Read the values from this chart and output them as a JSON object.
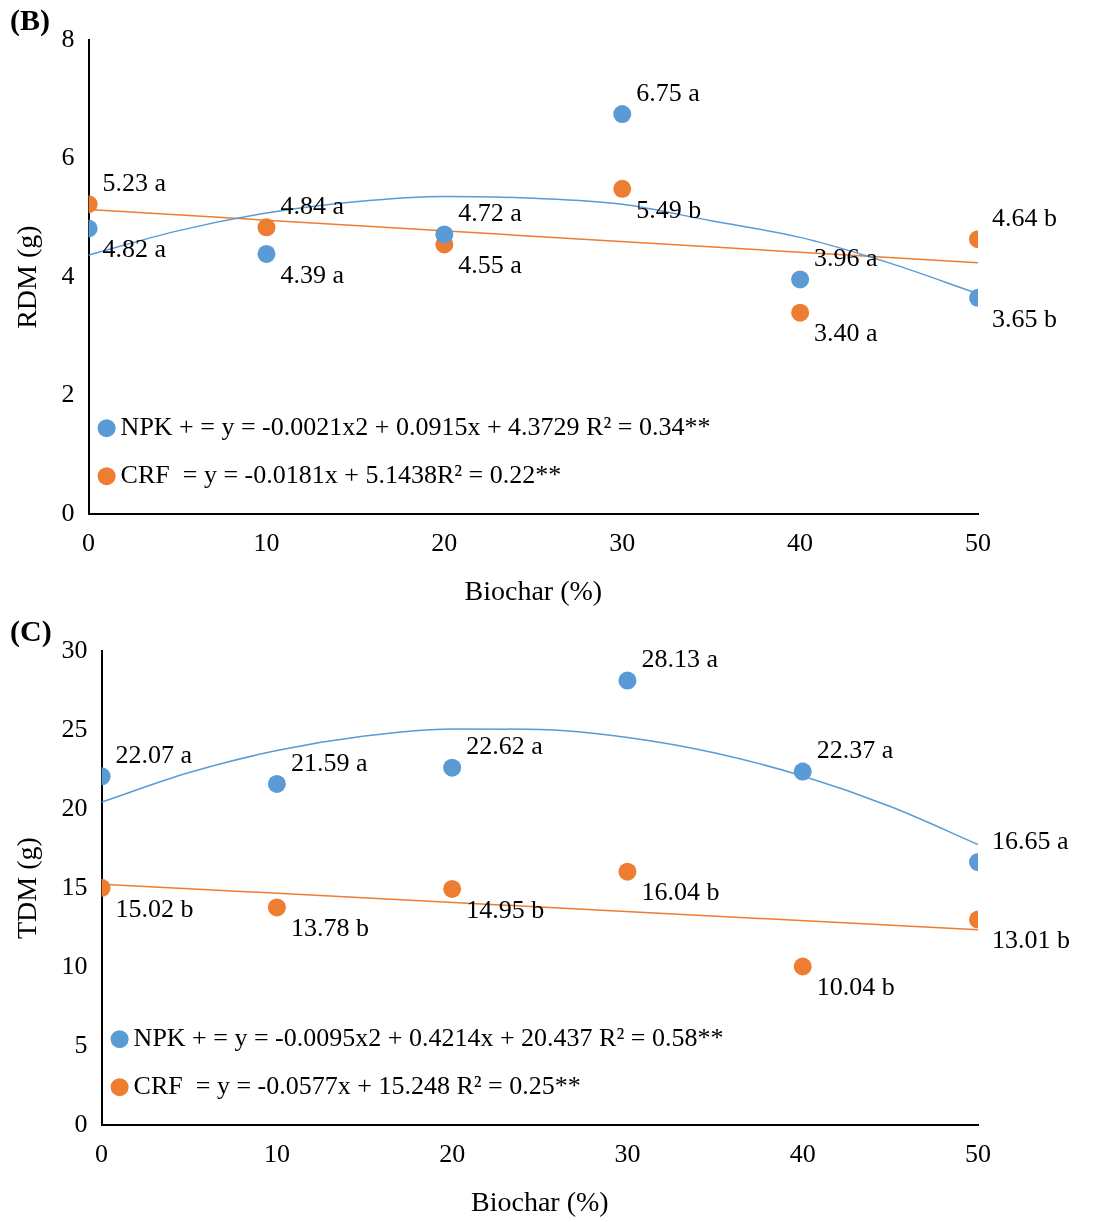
{
  "chart_data": [
    {
      "type": "scatter",
      "title": "(B)",
      "xlabel": "Biochar (%)",
      "ylabel": "RDM (g)",
      "x": [
        0,
        10,
        20,
        30,
        40,
        50
      ],
      "xlim": [
        0,
        50
      ],
      "xticks": [
        0,
        10,
        20,
        30,
        40,
        50
      ],
      "ylim": [
        0,
        8
      ],
      "yticks": [
        0,
        2,
        4,
        6,
        8
      ],
      "grid": false,
      "legend": "bottom left",
      "marker": "circle",
      "series": [
        {
          "name": "NPK + = y = -0.0021x2 + 0.0915x + 4.3729 R² = 0.34**",
          "color": "#5b9bd5",
          "values": [
            4.82,
            4.39,
            4.72,
            6.75,
            3.96,
            3.65
          ],
          "value_labels": [
            "4.82 a",
            "4.39 a",
            "4.72 a",
            "6.75 a",
            "3.96 a",
            "3.65 b"
          ]
        },
        {
          "name": "CRF  = y = -0.0181x + 5.1438R² = 0.22**",
          "color": "#ed7d31",
          "values": [
            5.23,
            4.84,
            4.55,
            5.49,
            3.4,
            4.64
          ],
          "value_labels": [
            "5.23 a",
            "4.84 a",
            "4.55 a",
            "5.49 b",
            "3.40 a",
            "4.64 b"
          ]
        },
        {
          "type": "line",
          "marker": "none",
          "color": "#5b9bd5",
          "x": [
            0,
            5,
            10,
            15,
            20,
            25,
            30,
            35,
            40,
            45,
            50
          ],
          "values": [
            4.37,
            4.78,
            5.08,
            5.27,
            5.36,
            5.33,
            5.23,
            4.95,
            4.67,
            4.24,
            3.72
          ]
        },
        {
          "type": "line",
          "marker": "none",
          "color": "#ed7d31",
          "x": [
            0,
            50
          ],
          "values": [
            5.14,
            4.24
          ]
        }
      ]
    },
    {
      "type": "scatter",
      "title": "(C)",
      "xlabel": "Biochar (%)",
      "ylabel": "TDM (g)",
      "x": [
        0,
        10,
        20,
        30,
        40,
        50
      ],
      "xlim": [
        0,
        50
      ],
      "xticks": [
        0,
        10,
        20,
        30,
        40,
        50
      ],
      "ylim": [
        0,
        30
      ],
      "yticks": [
        0,
        5,
        10,
        15,
        20,
        25,
        30
      ],
      "grid": false,
      "legend": "bottom left",
      "marker": "circle",
      "series": [
        {
          "name": "NPK + = y = -0.0095x2 + 0.4214x + 20.437 R² = 0.58**",
          "color": "#5b9bd5",
          "values": [
            22.07,
            21.59,
            22.62,
            28.13,
            22.37,
            16.65
          ],
          "value_labels": [
            "22.07 a",
            "21.59 a",
            "22.62 a",
            "28.13 a",
            "22.37 a",
            "16.65 a"
          ]
        },
        {
          "name": "CRF  = y = -0.0577x + 15.248 R² = 0.25**",
          "color": "#ed7d31",
          "values": [
            15.02,
            13.78,
            14.95,
            16.04,
            10.04,
            13.01
          ],
          "value_labels": [
            "15.02 b",
            "13.78 b",
            "14.95 b",
            "16.04 b",
            "10.04 b",
            "13.01 b"
          ]
        },
        {
          "type": "line",
          "marker": "none",
          "color": "#5b9bd5",
          "x": [
            0,
            5,
            10,
            15,
            20,
            25,
            30,
            35,
            40,
            45,
            50
          ],
          "values": [
            20.44,
            22.31,
            23.7,
            24.62,
            25.07,
            25.03,
            24.53,
            23.55,
            22.09,
            20.16,
            17.76
          ]
        },
        {
          "type": "line",
          "marker": "none",
          "color": "#ed7d31",
          "x": [
            0,
            50
          ],
          "values": [
            15.25,
            12.36
          ]
        }
      ]
    }
  ]
}
